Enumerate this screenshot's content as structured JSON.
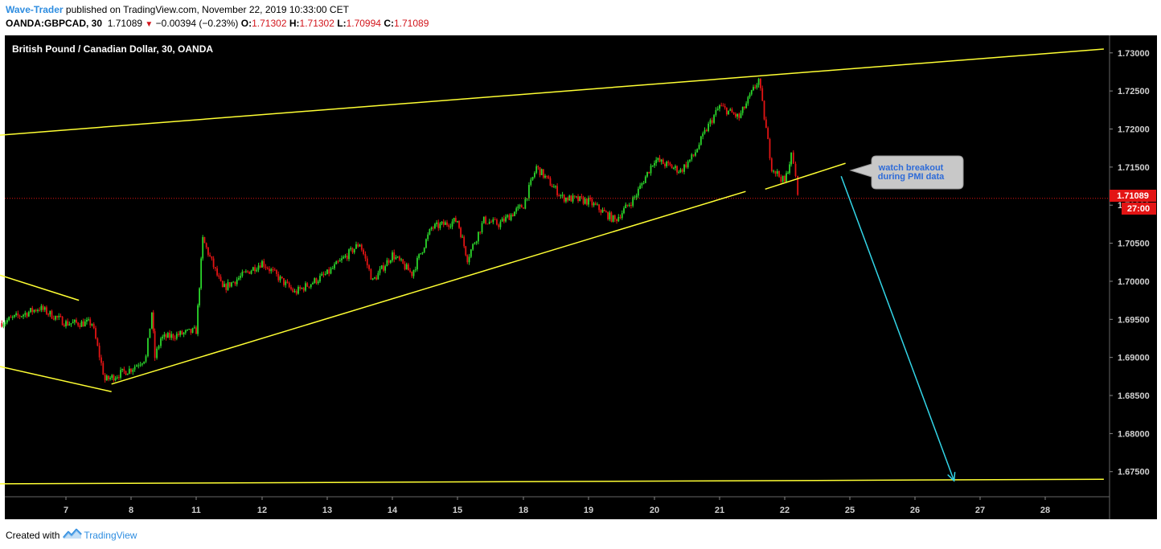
{
  "header": {
    "author": "Wave-Trader",
    "published_text": " published on TradingView.com, November 22, 2019 10:33:00 CET",
    "symbol": "OANDA:GBPCAD, 30",
    "last": "1.71089",
    "change": "−0.00394 (−0.23%)",
    "open_label": "O:",
    "open": "1.71302",
    "high_label": "H:",
    "high": "1.71302",
    "low_label": "L:",
    "low": "1.70994",
    "close_label": "C:",
    "close": "1.71089"
  },
  "footer": {
    "created_with": "Created with",
    "brand": "TradingView"
  },
  "colors": {
    "background": "#000000",
    "up_candle": "#2bd62b",
    "down_candle": "#e31414",
    "trendline": "#ffff33",
    "projection_arrow": "#33d6e8",
    "price_line": "#e31414",
    "axis_text": "#d0d0d0",
    "callout_bg": "#c8c8c8",
    "callout_text": "#2e6bd8"
  },
  "chart_data": {
    "type": "candlestick",
    "title": "British Pound / Canadian Dollar, 30, OANDA",
    "x_tick_labels": [
      "7",
      "8",
      "11",
      "12",
      "13",
      "14",
      "15",
      "18",
      "19",
      "20",
      "21",
      "22",
      "25",
      "26",
      "27",
      "28"
    ],
    "y_tick_labels": [
      "1.73000",
      "1.72500",
      "1.72000",
      "1.71500",
      "1.71000",
      "1.70500",
      "1.70000",
      "1.69500",
      "1.69000",
      "1.68500",
      "1.68000",
      "1.67500"
    ],
    "ylim": [
      1.6717,
      1.7323
    ],
    "last_price": "1.71089",
    "countdown": "27:00",
    "annotation": [
      "watch breakout",
      "during PMI data"
    ],
    "price_path": [
      {
        "x": "6",
        "y": 1.6945
      },
      {
        "x": "6.6",
        "y": 1.6965
      },
      {
        "x": "7",
        "y": 1.6945
      },
      {
        "x": "7.4",
        "y": 1.6945
      },
      {
        "x": "7.6",
        "y": 1.687
      },
      {
        "x": "8",
        "y": 1.6885
      },
      {
        "x": "8.5",
        "y": 1.69
      },
      {
        "x": "8.7",
        "y": 1.696
      },
      {
        "x": "8.8",
        "y": 1.69
      },
      {
        "x": "9",
        "y": 1.6925
      },
      {
        "x": "11",
        "y": 1.6935
      },
      {
        "x": "11.1",
        "y": 1.7055
      },
      {
        "x": "11.4",
        "y": 1.699
      },
      {
        "x": "12",
        "y": 1.7025
      },
      {
        "x": "12.5",
        "y": 1.6985
      },
      {
        "x": "13",
        "y": 1.701
      },
      {
        "x": "13.5",
        "y": 1.705
      },
      {
        "x": "13.7",
        "y": 1.7
      },
      {
        "x": "14",
        "y": 1.7035
      },
      {
        "x": "14.3",
        "y": 1.701
      },
      {
        "x": "14.6",
        "y": 1.707
      },
      {
        "x": "15",
        "y": 1.708
      },
      {
        "x": "15.3",
        "y": 1.703
      },
      {
        "x": "15.8",
        "y": 1.708
      },
      {
        "x": "16.5",
        "y": 1.7075
      },
      {
        "x": "18",
        "y": 1.71
      },
      {
        "x": "18.2",
        "y": 1.715
      },
      {
        "x": "18.6",
        "y": 1.711
      },
      {
        "x": "19",
        "y": 1.7105
      },
      {
        "x": "19.4",
        "y": 1.708
      },
      {
        "x": "19.7",
        "y": 1.711
      },
      {
        "x": "20",
        "y": 1.716
      },
      {
        "x": "20.4",
        "y": 1.7145
      },
      {
        "x": "20.6",
        "y": 1.7165
      },
      {
        "x": "20.8",
        "y": 1.72
      },
      {
        "x": "21",
        "y": 1.723
      },
      {
        "x": "21.3",
        "y": 1.7215
      },
      {
        "x": "21.6",
        "y": 1.7265
      },
      {
        "x": "21.8",
        "y": 1.715
      },
      {
        "x": "22",
        "y": 1.713
      },
      {
        "x": "22.3",
        "y": 1.7165
      },
      {
        "x": "22.5",
        "y": 1.714
      },
      {
        "x": "22.6",
        "y": 1.7109
      }
    ],
    "trendlines": [
      {
        "name": "upper-channel",
        "from": {
          "x": "5.9",
          "y": 1.7192
        },
        "to": {
          "x": "28.9",
          "y": 1.7305
        }
      },
      {
        "name": "rising-support",
        "from": {
          "x": "7.7",
          "y": 1.6865
        },
        "to": {
          "x": "21.4",
          "y": 1.7118
        }
      },
      {
        "name": "lower-flag",
        "from": {
          "x": "5.9",
          "y": 1.6888
        },
        "to": {
          "x": "7.7",
          "y": 1.6855
        }
      },
      {
        "name": "upper-flag",
        "from": {
          "x": "5.9",
          "y": 1.7008
        },
        "to": {
          "x": "7.2",
          "y": 1.6975
        }
      },
      {
        "name": "short-support",
        "from": {
          "x": "21.7",
          "y": 1.7121
        },
        "to": {
          "x": "24.8",
          "y": 1.7155
        }
      },
      {
        "name": "bottom-support",
        "from": {
          "x": "5.9",
          "y": 1.6734
        },
        "to": {
          "x": "28.9",
          "y": 1.674
        }
      }
    ],
    "projection": {
      "from": {
        "x": "24.6",
        "y": 1.7138
      },
      "to": {
        "x": "26.6",
        "y": 1.6738
      }
    }
  }
}
